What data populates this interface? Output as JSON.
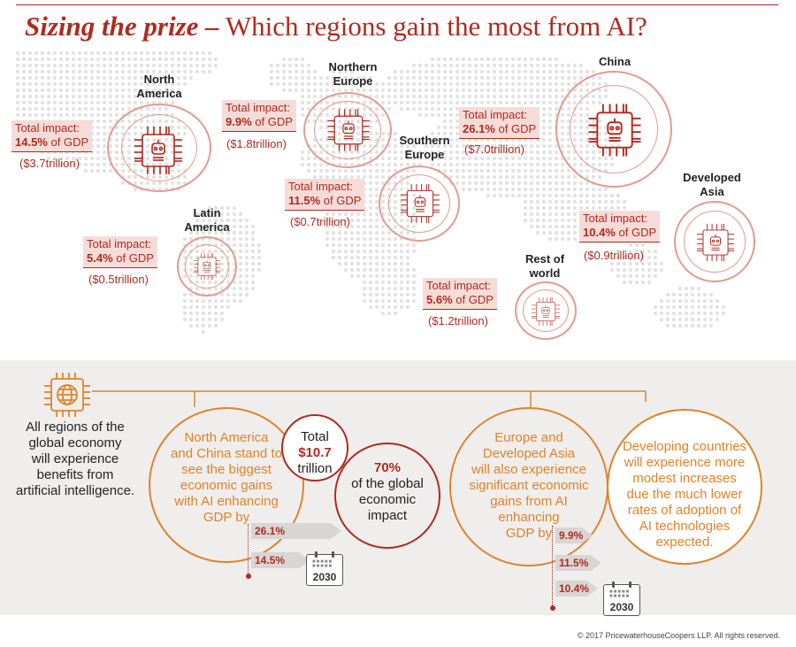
{
  "title": {
    "bold": "Sizing the prize –",
    "rest": "Which regions gain the most from AI?"
  },
  "regions": {
    "north_america": {
      "name_line1": "North",
      "name_line2": "America",
      "impact_label": "Total impact:",
      "pct": "14.5%",
      "suffix": "of GDP",
      "trillion": "($3.7trillion)"
    },
    "northern_europe": {
      "name_line1": "Northern",
      "name_line2": "Europe",
      "impact_label": "Total impact:",
      "pct": "9.9%",
      "suffix": "of GDP",
      "trillion": "($1.8trillion)"
    },
    "china": {
      "name_line1": "China",
      "impact_label": "Total impact:",
      "pct": "26.1%",
      "suffix": "of GDP",
      "trillion": "($7.0trillion)"
    },
    "southern_europe": {
      "name_line1": "Southern",
      "name_line2": "Europe",
      "impact_label": "Total impact:",
      "pct": "11.5%",
      "suffix": "of GDP",
      "trillion": "($0.7trillion)"
    },
    "developed_asia": {
      "name_line1": "Developed",
      "name_line2": "Asia",
      "impact_label": "Total impact:",
      "pct": "10.4%",
      "suffix": "of GDP",
      "trillion": "($0.9trillion)"
    },
    "latin_america": {
      "name_line1": "Latin",
      "name_line2": "America",
      "impact_label": "Total impact:",
      "pct": "5.4%",
      "suffix": "of GDP",
      "trillion": "($0.5trillion)"
    },
    "rest_of_world": {
      "name_line1": "Rest of",
      "name_line2": "world",
      "impact_label": "Total impact:",
      "pct": "5.6%",
      "suffix": "of GDP",
      "trillion": "($1.2trillion)"
    }
  },
  "summary": {
    "all_regions": [
      "All regions of the",
      "global economy",
      "will experience",
      "benefits from",
      "artificial intelligence."
    ],
    "na_china": [
      "North America",
      "and China stand to",
      "see the biggest",
      "economic gains",
      "with AI enhancing",
      "GDP by"
    ],
    "total": [
      "Total",
      "$10.7",
      "trillion"
    ],
    "share": [
      "70%",
      "of the global",
      "economic",
      "impact"
    ],
    "europe_asia": [
      "Europe and",
      "Developed Asia",
      "will also experience",
      "significant economic",
      "gains from AI",
      "enhancing",
      "GDP by"
    ],
    "developing": [
      "Developing countries",
      "will experience more",
      "modest increases",
      "due the much lower",
      "rates of adoption of",
      "AI technologies",
      "expected."
    ],
    "arrows_left": [
      "26.1%",
      "14.5%"
    ],
    "arrows_right": [
      "9.9%",
      "11.5%",
      "10.4%"
    ],
    "year": "2030"
  },
  "footer": "© 2017 PricewaterhouseCoopers LLP. All rights reserved.",
  "colors": {
    "brand_red": "#b02a1e",
    "orange": "#e0832a",
    "pink_fill": "#f6dcd8",
    "circle_pink": "#e39b90",
    "panel_grey": "#efeeed"
  },
  "icons": [
    "ai-chip-icon",
    "globe-chip-icon",
    "calendar-icon"
  ]
}
